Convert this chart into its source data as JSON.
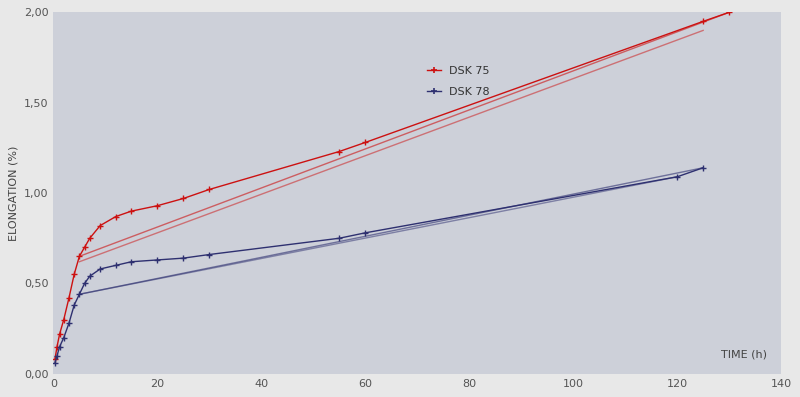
{
  "xlabel": "TIME (h)",
  "ylabel": "ELONGATION (%)",
  "xlim": [
    0,
    140
  ],
  "ylim": [
    0.0,
    2.0
  ],
  "yticks": [
    0.0,
    0.5,
    1.0,
    1.5,
    2.0
  ],
  "ytick_labels": [
    "0,00",
    "0,50",
    "1,00",
    "1,50",
    "2,00"
  ],
  "xticks": [
    0,
    20,
    40,
    60,
    80,
    100,
    120,
    140
  ],
  "plot_bg_color": "#cdd0d9",
  "outer_bg_color": "#e8e8e8",
  "sk75_color": "#cc1111",
  "sk78_color": "#2e3070",
  "sk75_data_x": [
    0.3,
    0.7,
    1.2,
    2,
    3,
    4,
    5,
    6,
    7,
    9,
    12,
    15,
    20,
    25,
    30,
    55,
    60,
    125,
    130
  ],
  "sk75_data_y": [
    0.08,
    0.15,
    0.22,
    0.3,
    0.42,
    0.55,
    0.65,
    0.7,
    0.75,
    0.82,
    0.87,
    0.9,
    0.93,
    0.97,
    1.02,
    1.23,
    1.28,
    1.95,
    2.0
  ],
  "sk78_data_x": [
    0.3,
    0.7,
    1.2,
    2,
    3,
    4,
    5,
    6,
    7,
    9,
    12,
    15,
    20,
    25,
    30,
    55,
    60,
    120,
    125
  ],
  "sk78_data_y": [
    0.06,
    0.1,
    0.15,
    0.2,
    0.28,
    0.38,
    0.44,
    0.5,
    0.54,
    0.58,
    0.6,
    0.62,
    0.63,
    0.64,
    0.66,
    0.75,
    0.78,
    1.09,
    1.14
  ],
  "sk75_trend1_x": [
    5,
    130
  ],
  "sk75_trend1_y": [
    0.65,
    2.0
  ],
  "sk75_trend2_x": [
    5,
    125
  ],
  "sk75_trend2_y": [
    0.62,
    1.9
  ],
  "sk78_trend1_x": [
    5,
    125
  ],
  "sk78_trend1_y": [
    0.44,
    1.14
  ],
  "sk78_trend2_x": [
    5,
    120
  ],
  "sk78_trend2_y": [
    0.44,
    1.09
  ],
  "legend_sk75": "DSK 75",
  "legend_sk78": "DSK 78",
  "axis_label_fontsize": 8,
  "tick_fontsize": 8,
  "legend_fontsize": 8
}
